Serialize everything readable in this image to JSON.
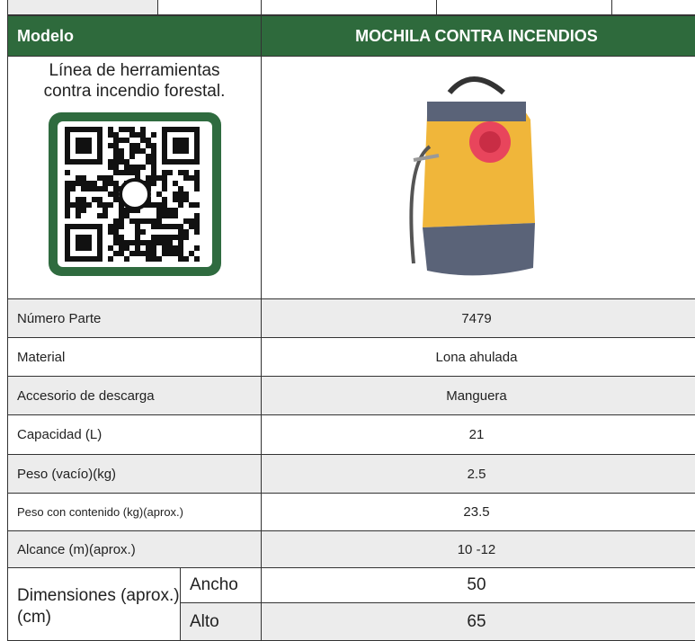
{
  "header": {
    "model_label": "Modelo",
    "product": "MOCHILA CONTRA INCENDIOS"
  },
  "description": "Línea de herramientas contra incendio forestal.",
  "rows": [
    [
      "Número Parte",
      "7479"
    ],
    [
      "Material",
      "Lona ahulada"
    ],
    [
      "Accesorio de descarga",
      "Manguera"
    ],
    [
      "Capacidad (L)",
      "21"
    ],
    [
      "Peso (vacío)(kg)",
      "2.5"
    ],
    [
      "Peso con contenido (kg)(aprox.)",
      "23.5"
    ],
    [
      "Alcance (m)(aprox.)",
      "10 -12"
    ]
  ],
  "dimensions": {
    "label": "Dimensiones (aprox.)(cm)",
    "rows": [
      [
        "Ancho",
        "50"
      ],
      [
        "Alto",
        "65"
      ]
    ]
  }
}
